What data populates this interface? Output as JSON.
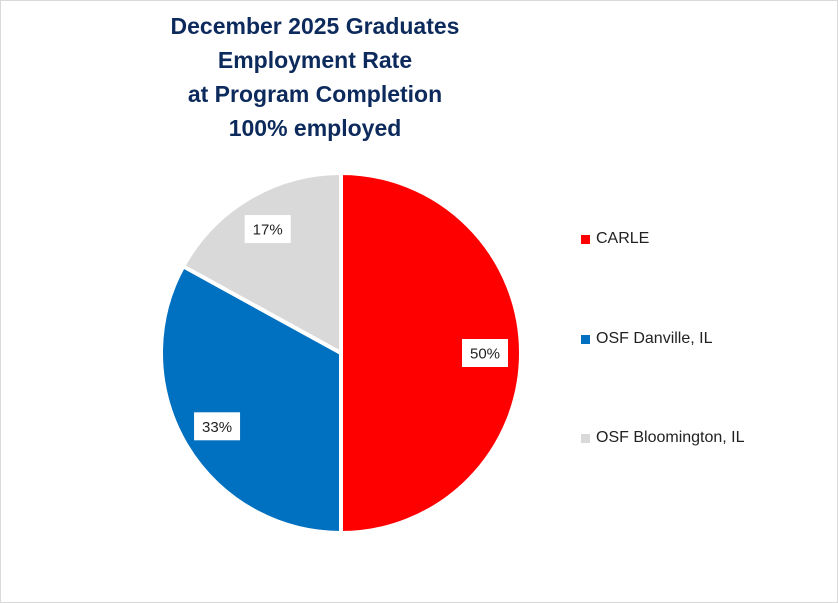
{
  "chart_data": {
    "type": "pie",
    "title_lines": [
      "December 2025 Graduates",
      "Employment Rate",
      "at Program Completion",
      "100% employed"
    ],
    "slices": [
      {
        "label": "CARLE",
        "value": 50,
        "display": "50%",
        "color": "#ff0000"
      },
      {
        "label": "OSF Danville, IL",
        "value": 33,
        "display": "33%",
        "color": "#0070c0"
      },
      {
        "label": "OSF Bloomington, IL",
        "value": 17,
        "display": "17%",
        "color": "#d9d9d9"
      }
    ],
    "legend_position": "right"
  }
}
